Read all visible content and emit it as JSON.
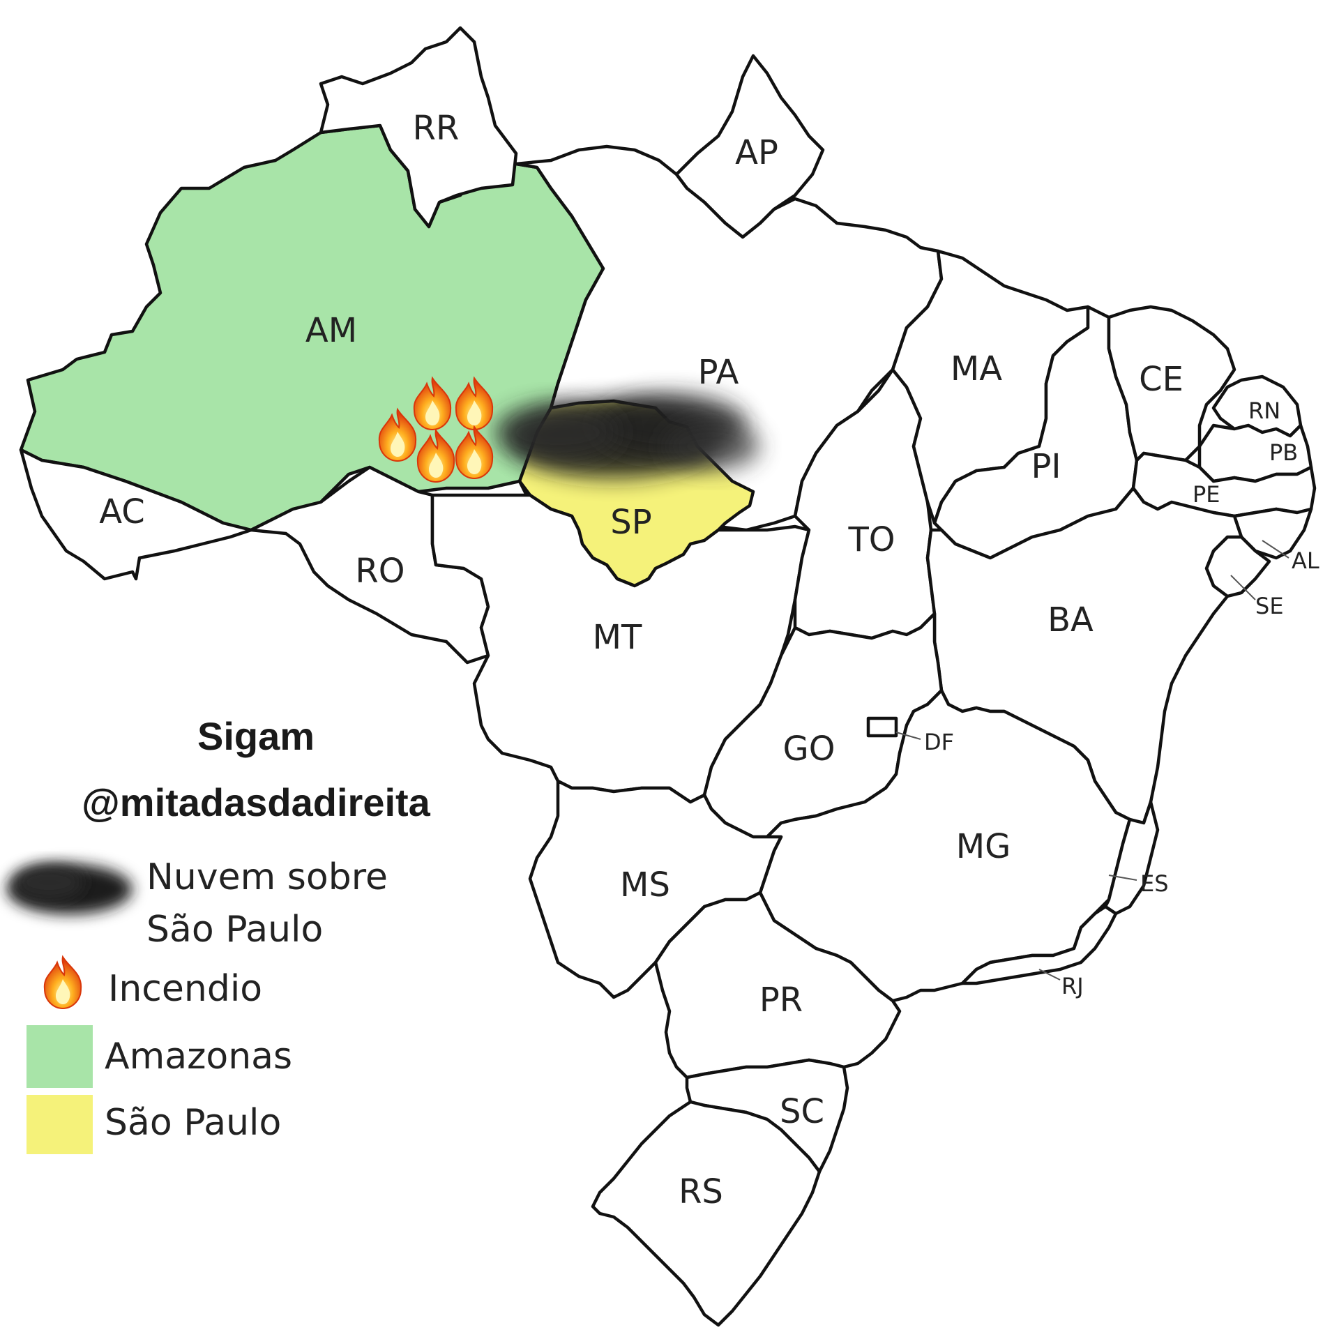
{
  "colors": {
    "amazonas": "#a8e4a8",
    "sao_paulo": "#f5f27a",
    "smoke": "#1c1c1c",
    "border": "#111111"
  },
  "states": {
    "RR": "RR",
    "AP": "AP",
    "AM": "AM",
    "PA": "PA",
    "MA": "MA",
    "CE": "CE",
    "RN": "RN",
    "PB": "PB",
    "PI": "PI",
    "PE": "PE",
    "AC": "AC",
    "SP": "SP",
    "TO": "TO",
    "AL": "AL",
    "RO": "RO",
    "SE": "SE",
    "BA": "BA",
    "MT": "MT",
    "GO": "GO",
    "DF": "DF",
    "MG": "MG",
    "MS": "MS",
    "ES": "ES",
    "PR": "PR",
    "RJ": "RJ",
    "SC": "SC",
    "RS": "RS"
  },
  "credit": {
    "line1": "Sigam",
    "line2": "@mitadasdadireita"
  },
  "legend": {
    "smoke_line1": "Nuvem sobre",
    "smoke_line2": "São Paulo",
    "fire": "Incendio",
    "amazonas": "Amazonas",
    "sao_paulo": "São Paulo"
  },
  "icons": {
    "fire": "fire-icon",
    "smoke": "smoke-cloud-icon"
  }
}
